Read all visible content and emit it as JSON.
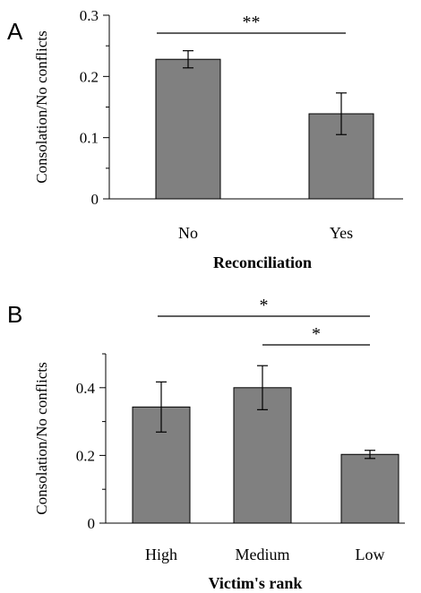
{
  "chart_data": [
    {
      "panel_label": "A",
      "type": "bar",
      "ylabel": "Consolation/No conflicts",
      "xlabel": "Reconciliation",
      "categories": [
        "No",
        "Yes"
      ],
      "values": [
        0.228,
        0.139
      ],
      "errors": [
        0.014,
        0.034
      ],
      "ylim": [
        0,
        0.3
      ],
      "yticks": [
        0,
        0.1,
        0.2,
        0.3
      ],
      "ytick_labels": [
        "0",
        "0.1",
        "0.2",
        "0.3"
      ],
      "minor_ticks": [
        0.05,
        0.15,
        0.25
      ],
      "bar_color": "#808080",
      "grid": false,
      "significance": [
        {
          "from": 0,
          "to": 1,
          "label": "**"
        }
      ]
    },
    {
      "panel_label": "B",
      "type": "bar",
      "ylabel": "Consolation/No conflicts",
      "xlabel": "Victim's rank",
      "categories": [
        "High",
        "Medium",
        "Low"
      ],
      "values": [
        0.343,
        0.4,
        0.203
      ],
      "errors": [
        0.074,
        0.065,
        0.012
      ],
      "ylim": [
        0,
        0.5
      ],
      "yticks": [
        0,
        0.2,
        0.4
      ],
      "ytick_labels": [
        "0",
        "0.2",
        "0.4"
      ],
      "minor_ticks": [
        0.1,
        0.3,
        0.5
      ],
      "bar_color": "#808080",
      "grid": false,
      "significance": [
        {
          "from": 0,
          "to": 2,
          "label": "*"
        },
        {
          "from": 1,
          "to": 2,
          "label": "*"
        }
      ]
    }
  ]
}
